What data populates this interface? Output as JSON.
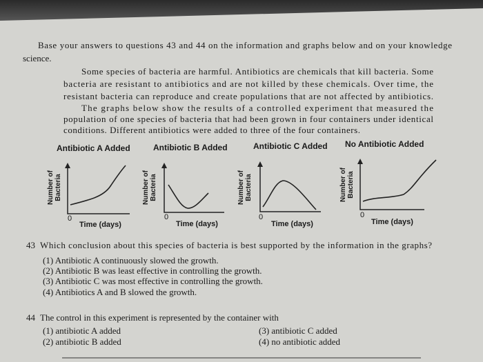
{
  "intro": [
    "Base your answers to questions 43 and 44 on the information and graphs below and on your knowledge",
    "science."
  ],
  "passage": [
    "Some species of bacteria are harmful. Antibiotics are chemicals that kill bacteria. Some",
    "bacteria are resistant to antibiotics and are not killed by these chemicals. Over time, the",
    "resistant bacteria can reproduce and create populations that are not affected by antibiotics.",
    "The graphs below show the results of a controlled experiment that measured the",
    "population of one species of bacteria that had been grown in four containers under identical",
    "conditions. Different antibiotics were added to three of the four containers."
  ],
  "graphs": [
    {
      "title": "Antibiotic A Added",
      "y_label": [
        "Number of",
        "Bacteria"
      ],
      "origin": "0",
      "x_label": "Time (days)"
    },
    {
      "title": "Antibiotic B Added",
      "y_label": [
        "Number of",
        "Bacteria"
      ],
      "origin": "0",
      "x_label": "Time (days)"
    },
    {
      "title": "Antibiotic C Added",
      "y_label": [
        "Number of",
        "Bacteria"
      ],
      "origin": "0",
      "x_label": "Time (days)"
    },
    {
      "title": "No Antibiotic Added",
      "y_label": [
        "Number of",
        "Bacteria"
      ],
      "origin": "0",
      "x_label": "Time (days)"
    }
  ],
  "questions": [
    {
      "number": "43",
      "text": "Which conclusion about this species of bacteria is best supported by the information in the graphs?",
      "options": [
        "(1)  Antibiotic A continuously slowed the growth.",
        "(2)  Antibiotic B was least effective in controlling the growth.",
        "(3)  Antibiotic C was most effective in controlling the growth.",
        "(4)  Antibiotics A and B slowed the growth."
      ]
    },
    {
      "number": "44",
      "text": "The control in this experiment is represented by the container with",
      "options": [
        "(1)  antibiotic A added",
        "(2)  antibiotic B added",
        "(3)  antibiotic C added",
        "(4)  no antibiotic added"
      ]
    }
  ]
}
